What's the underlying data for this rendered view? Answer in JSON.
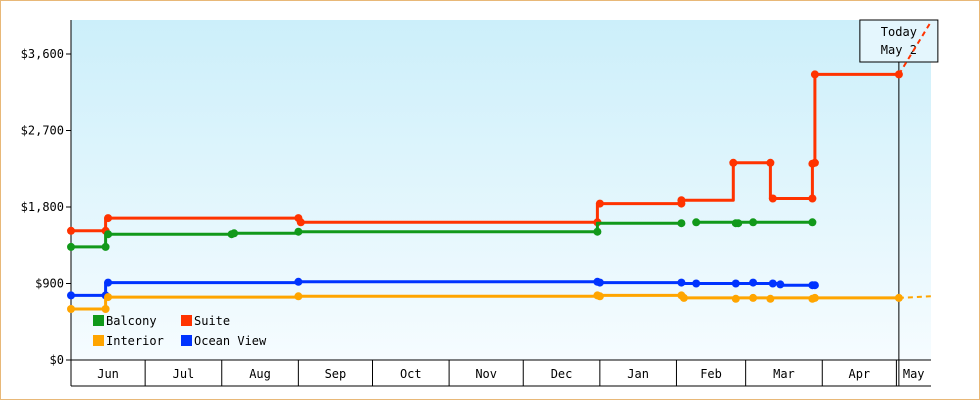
{
  "colors": {
    "Balcony": "#11991a",
    "Suite": "#ff3300",
    "Interior": "#ffa500",
    "Ocean View": "#0033ff",
    "plot_top": "#cceffa",
    "plot_bottom": "#f6fcff"
  },
  "today": {
    "line1": "Today",
    "line2": "May 2"
  },
  "chart_data": {
    "type": "line",
    "title": "",
    "xlabel": "",
    "ylabel": "",
    "x_type": "date",
    "xlim": [
      "2013-06-01",
      "2014-05-15"
    ],
    "ylim": [
      0,
      4000
    ],
    "yticks": [
      0,
      900,
      1800,
      2700,
      3600
    ],
    "ytick_labels": [
      "$0",
      "$900",
      "$1,800",
      "$2,700",
      "$3,600"
    ],
    "xtick_labels": [
      "Jun",
      "Jul",
      "Aug",
      "Sep",
      "Oct",
      "Nov",
      "Dec",
      "Jan",
      "Feb",
      "Mar",
      "Apr",
      "May"
    ],
    "month_starts": [
      "2013-06-01",
      "2013-07-01",
      "2013-08-01",
      "2013-09-01",
      "2013-10-01",
      "2013-11-01",
      "2013-12-01",
      "2014-01-01",
      "2014-02-01",
      "2014-03-01",
      "2014-04-01",
      "2014-05-01"
    ],
    "today_date": "2014-05-02",
    "grid": false,
    "legend_position": "bottom-left",
    "series": [
      {
        "name": "Suite",
        "points": [
          [
            "2013-06-01",
            1520
          ],
          [
            "2013-06-15",
            1520
          ],
          [
            "2013-06-15",
            1670
          ],
          [
            "2013-09-01",
            1670
          ],
          [
            "2013-09-01",
            1620
          ],
          [
            "2013-12-31",
            1620
          ],
          [
            "2013-12-31",
            1840
          ],
          [
            "2014-02-03",
            1840
          ],
          [
            "2014-02-03",
            1880
          ],
          [
            "2014-02-24",
            1880
          ],
          [
            "2014-02-24",
            2320
          ],
          [
            "2014-03-11",
            2320
          ],
          [
            "2014-03-11",
            1900
          ],
          [
            "2014-03-28",
            1900
          ],
          [
            "2014-03-28",
            2310
          ],
          [
            "2014-03-29",
            2310
          ],
          [
            "2014-03-29",
            3360
          ],
          [
            "2014-05-02",
            3360
          ]
        ],
        "markers": [
          [
            "2013-06-01",
            1520
          ],
          [
            "2013-06-15",
            1520
          ],
          [
            "2013-06-16",
            1670
          ],
          [
            "2013-09-01",
            1670
          ],
          [
            "2013-09-02",
            1620
          ],
          [
            "2013-12-31",
            1620
          ],
          [
            "2014-01-01",
            1840
          ],
          [
            "2014-02-03",
            1840
          ],
          [
            "2014-02-03",
            1880
          ],
          [
            "2014-02-24",
            2320
          ],
          [
            "2014-03-11",
            2320
          ],
          [
            "2014-03-12",
            1900
          ],
          [
            "2014-03-28",
            1900
          ],
          [
            "2014-03-28",
            2310
          ],
          [
            "2014-03-29",
            2320
          ],
          [
            "2014-03-29",
            3360
          ],
          [
            "2014-05-02",
            3360
          ]
        ],
        "projection": [
          [
            "2014-05-02",
            3360
          ],
          [
            "2014-05-15",
            3980
          ]
        ]
      },
      {
        "name": "Balcony",
        "points": [
          [
            "2013-06-01",
            1330
          ],
          [
            "2013-06-15",
            1330
          ],
          [
            "2013-06-15",
            1480
          ],
          [
            "2013-08-06",
            1480
          ],
          [
            "2013-08-06",
            1490
          ],
          [
            "2013-09-01",
            1490
          ],
          [
            "2013-09-01",
            1510
          ],
          [
            "2013-12-31",
            1510
          ],
          [
            "2013-12-31",
            1610
          ],
          [
            "2014-02-03",
            1610
          ]
        ],
        "points2": [
          [
            "2014-02-09",
            1620
          ],
          [
            "2014-03-28",
            1620
          ]
        ],
        "markers": [
          [
            "2013-06-01",
            1330
          ],
          [
            "2013-06-15",
            1330
          ],
          [
            "2013-06-16",
            1480
          ],
          [
            "2013-08-05",
            1480
          ],
          [
            "2013-08-06",
            1490
          ],
          [
            "2013-09-01",
            1510
          ],
          [
            "2013-12-31",
            1510
          ],
          [
            "2014-02-03",
            1610
          ],
          [
            "2014-02-09",
            1620
          ],
          [
            "2014-02-25",
            1610
          ],
          [
            "2014-02-26",
            1610
          ],
          [
            "2014-03-04",
            1620
          ],
          [
            "2014-03-28",
            1620
          ]
        ]
      },
      {
        "name": "Ocean View",
        "points": [
          [
            "2013-06-01",
            760
          ],
          [
            "2013-06-15",
            760
          ],
          [
            "2013-06-15",
            910
          ],
          [
            "2013-09-01",
            910
          ],
          [
            "2013-09-01",
            920
          ],
          [
            "2013-12-31",
            920
          ],
          [
            "2013-12-31",
            910
          ],
          [
            "2014-02-03",
            910
          ],
          [
            "2014-02-03",
            900
          ],
          [
            "2014-03-15",
            900
          ],
          [
            "2014-03-15",
            880
          ],
          [
            "2014-03-29",
            880
          ]
        ],
        "markers": [
          [
            "2013-06-01",
            760
          ],
          [
            "2013-06-15",
            760
          ],
          [
            "2013-06-16",
            910
          ],
          [
            "2013-09-01",
            920
          ],
          [
            "2013-12-31",
            920
          ],
          [
            "2014-01-01",
            910
          ],
          [
            "2014-02-03",
            910
          ],
          [
            "2014-02-09",
            900
          ],
          [
            "2014-02-25",
            900
          ],
          [
            "2014-03-04",
            910
          ],
          [
            "2014-03-12",
            900
          ],
          [
            "2014-03-15",
            890
          ],
          [
            "2014-03-28",
            880
          ],
          [
            "2014-03-29",
            880
          ]
        ]
      },
      {
        "name": "Interior",
        "points": [
          [
            "2013-06-01",
            600
          ],
          [
            "2013-06-15",
            600
          ],
          [
            "2013-06-15",
            740
          ],
          [
            "2013-09-01",
            740
          ],
          [
            "2013-09-01",
            750
          ],
          [
            "2013-12-31",
            750
          ],
          [
            "2013-12-31",
            760
          ],
          [
            "2014-02-03",
            760
          ],
          [
            "2014-02-03",
            730
          ],
          [
            "2014-05-02",
            730
          ]
        ],
        "markers": [
          [
            "2013-06-01",
            600
          ],
          [
            "2013-06-15",
            600
          ],
          [
            "2013-06-16",
            740
          ],
          [
            "2013-09-01",
            750
          ],
          [
            "2013-12-31",
            760
          ],
          [
            "2014-01-01",
            750
          ],
          [
            "2014-02-03",
            760
          ],
          [
            "2014-02-04",
            730
          ],
          [
            "2014-02-25",
            720
          ],
          [
            "2014-03-04",
            730
          ],
          [
            "2014-03-11",
            720
          ],
          [
            "2014-03-28",
            720
          ],
          [
            "2014-03-29",
            730
          ],
          [
            "2014-05-02",
            730
          ]
        ],
        "projection": [
          [
            "2014-05-02",
            730
          ],
          [
            "2014-05-15",
            750
          ]
        ]
      }
    ],
    "legend": [
      "Balcony",
      "Suite",
      "Interior",
      "Ocean View"
    ]
  }
}
